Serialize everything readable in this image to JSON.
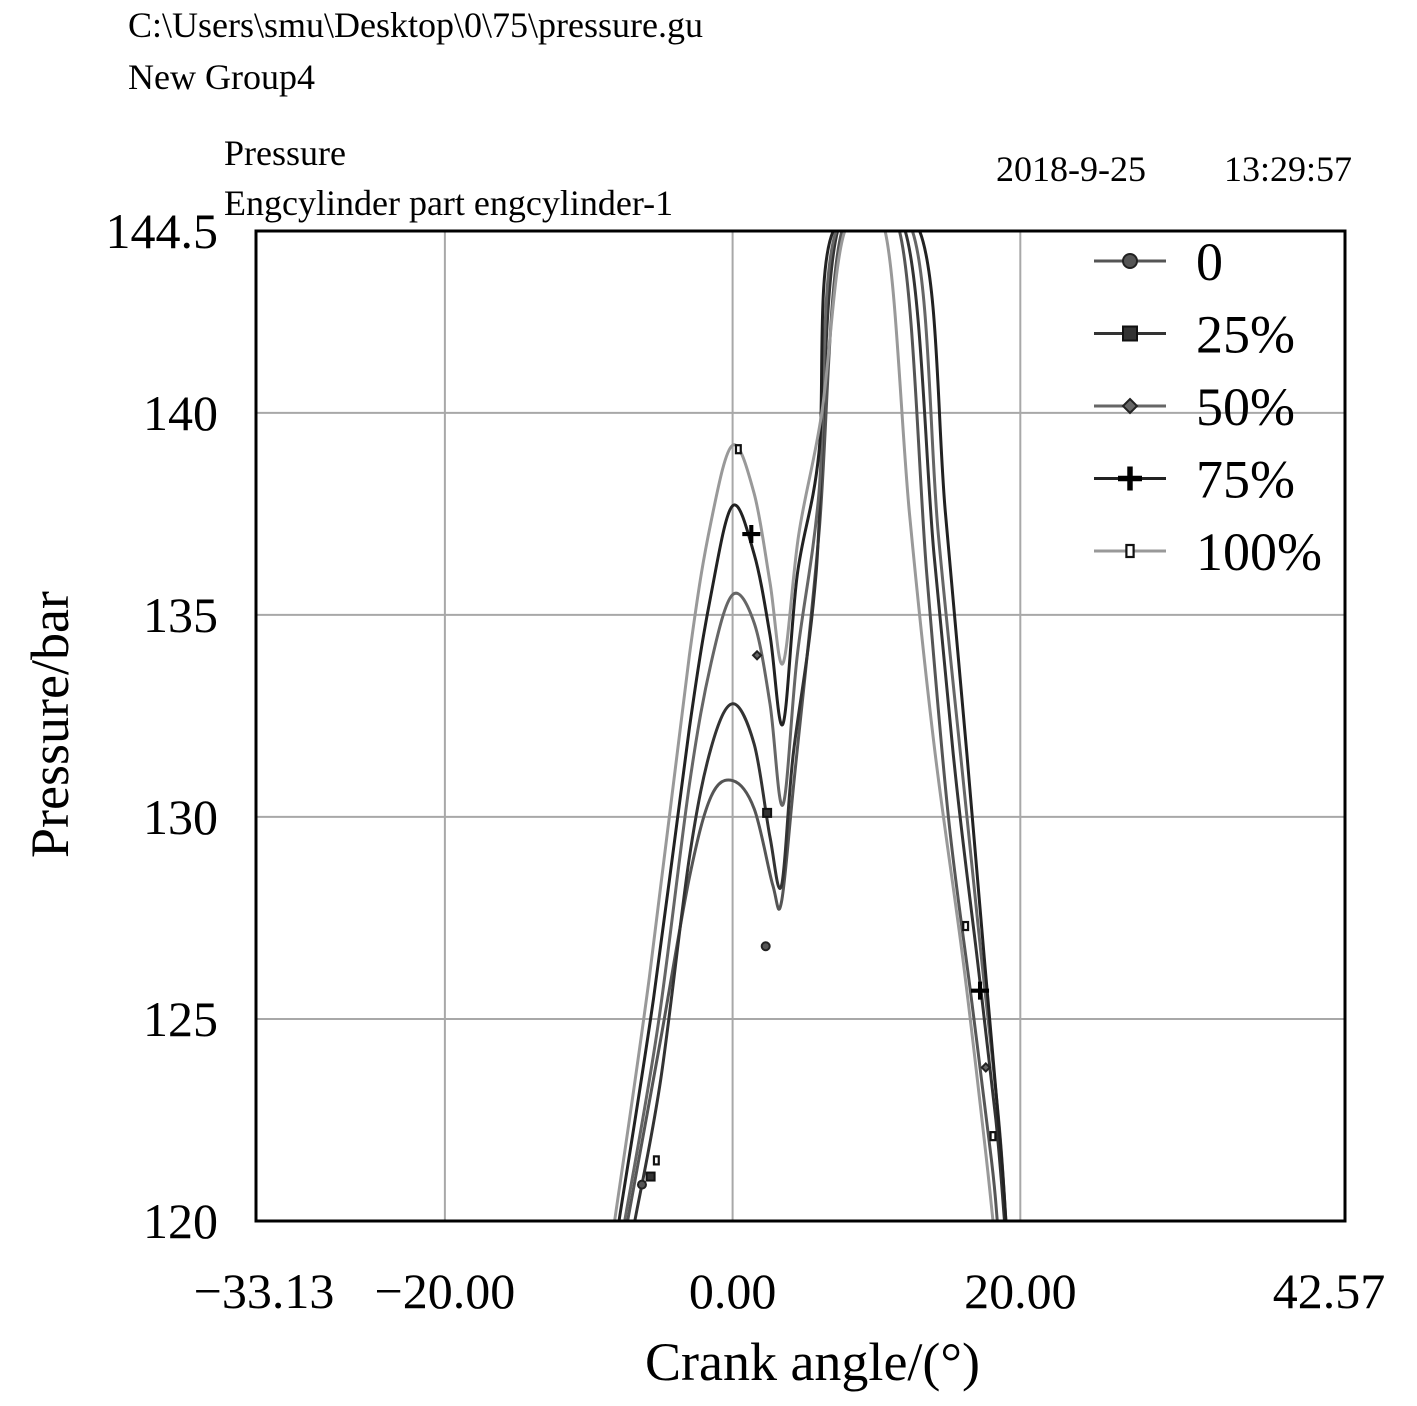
{
  "header": {
    "file_path": "C:\\Users\\smu\\Desktop\\0\\75\\pressure.gu",
    "group": "New Group4",
    "title": "Pressure",
    "subtitle": "Engcylinder part engcylinder-1",
    "date": "2018-9-25",
    "time": "13:29:57"
  },
  "chart_data": {
    "type": "line",
    "title": "Pressure",
    "xlabel": "Crank angle/(°)",
    "ylabel": "Pressure/bar",
    "xlim": [
      -33.13,
      42.57
    ],
    "ylim": [
      120,
      144.5
    ],
    "x_ticks": [
      -33.13,
      -20.0,
      0.0,
      20.0,
      42.57
    ],
    "x_tick_labels": [
      "−33.13",
      "−20.00",
      "0.00",
      "20.00",
      "42.57"
    ],
    "y_ticks": [
      120,
      125,
      130,
      135,
      140,
      144.5
    ],
    "y_tick_labels": [
      "120",
      "125",
      "130",
      "135",
      "140",
      "144.5"
    ],
    "grid": true,
    "legend_position": "top-right",
    "series": [
      {
        "name": "0",
        "marker": "circle",
        "color": "#555555",
        "points": [
          [
            -7.3,
            120
          ],
          [
            -5,
            124.5
          ],
          [
            -3,
            128.5
          ],
          [
            -1.5,
            130.5
          ],
          [
            0,
            130.9
          ],
          [
            1.5,
            130.2
          ],
          [
            2.8,
            128.3
          ],
          [
            3.4,
            127.9
          ],
          [
            4.3,
            131
          ],
          [
            6,
            137
          ],
          [
            7.6,
            144.5
          ],
          [
            11.6,
            144.5
          ],
          [
            13.5,
            136
          ],
          [
            15,
            130
          ],
          [
            16.6,
            125.5
          ],
          [
            18,
            121.5
          ],
          [
            18.4,
            120
          ]
        ],
        "markers": [
          [
            -6.3,
            120.9
          ],
          [
            2.3,
            126.8
          ]
        ]
      },
      {
        "name": "25%",
        "marker": "square",
        "color": "#333333",
        "points": [
          [
            -6.8,
            120
          ],
          [
            -5,
            123.5
          ],
          [
            -3,
            129
          ],
          [
            -1.5,
            131.7
          ],
          [
            0,
            132.8
          ],
          [
            1.5,
            131.8
          ],
          [
            2.6,
            129.5
          ],
          [
            3.4,
            128.3
          ],
          [
            4.2,
            131.5
          ],
          [
            5.8,
            136
          ],
          [
            7.3,
            144.5
          ],
          [
            12,
            144.5
          ],
          [
            14,
            136.5
          ],
          [
            15.5,
            131
          ],
          [
            17,
            126.5
          ],
          [
            18.3,
            122.5
          ],
          [
            18.9,
            120
          ]
        ],
        "markers": [
          [
            -5.7,
            121.1
          ],
          [
            2.4,
            130.1
          ]
        ]
      },
      {
        "name": "50%",
        "marker": "diamond",
        "color": "#666666",
        "points": [
          [
            -7.5,
            120
          ],
          [
            -5.2,
            124.8
          ],
          [
            -3,
            130.8
          ],
          [
            -1.5,
            133.8
          ],
          [
            0,
            135.5
          ],
          [
            1.5,
            134.8
          ],
          [
            2.6,
            132.8
          ],
          [
            3.5,
            130.3
          ],
          [
            4.5,
            134
          ],
          [
            6,
            138
          ],
          [
            7.2,
            144.5
          ],
          [
            12.5,
            144.5
          ],
          [
            14.3,
            137
          ],
          [
            16,
            131
          ],
          [
            17.3,
            126.5
          ],
          [
            18.5,
            122.5
          ],
          [
            19,
            120
          ]
        ],
        "markers": [
          [
            1.7,
            134
          ],
          [
            17.6,
            123.8
          ]
        ]
      },
      {
        "name": "75%",
        "marker": "plus",
        "color": "#222222",
        "points": [
          [
            -7.9,
            120
          ],
          [
            -5.5,
            125.5
          ],
          [
            -3,
            132.2
          ],
          [
            -1.5,
            135.5
          ],
          [
            0,
            137.7
          ],
          [
            1.5,
            136.5
          ],
          [
            2.6,
            134.5
          ],
          [
            3.5,
            132.3
          ],
          [
            4.5,
            136
          ],
          [
            6,
            139
          ],
          [
            7,
            144.5
          ],
          [
            13,
            144.5
          ],
          [
            14.8,
            137.5
          ],
          [
            16.3,
            131.5
          ],
          [
            17.5,
            126.5
          ],
          [
            18.6,
            122
          ],
          [
            19,
            120
          ]
        ],
        "markers": [
          [
            1.3,
            137
          ],
          [
            17.2,
            125.7
          ]
        ]
      },
      {
        "name": "100%",
        "marker": "rect-hollow",
        "color": "#999999",
        "points": [
          [
            -8.2,
            120
          ],
          [
            -5.8,
            126
          ],
          [
            -3,
            134
          ],
          [
            -1.5,
            137.3
          ],
          [
            0,
            139.2
          ],
          [
            1.5,
            138
          ],
          [
            2.6,
            135.8
          ],
          [
            3.5,
            133.8
          ],
          [
            4.6,
            137
          ],
          [
            6.2,
            140
          ],
          [
            7.8,
            144.5
          ],
          [
            10.6,
            144.5
          ],
          [
            12.3,
            137.5
          ],
          [
            14,
            131.8
          ],
          [
            16,
            126.5
          ],
          [
            17.5,
            122
          ],
          [
            18.1,
            120
          ]
        ],
        "markers": [
          [
            0.4,
            139.1
          ],
          [
            -5.3,
            121.5
          ],
          [
            16.2,
            127.3
          ],
          [
            18.1,
            122.1
          ]
        ]
      }
    ]
  }
}
